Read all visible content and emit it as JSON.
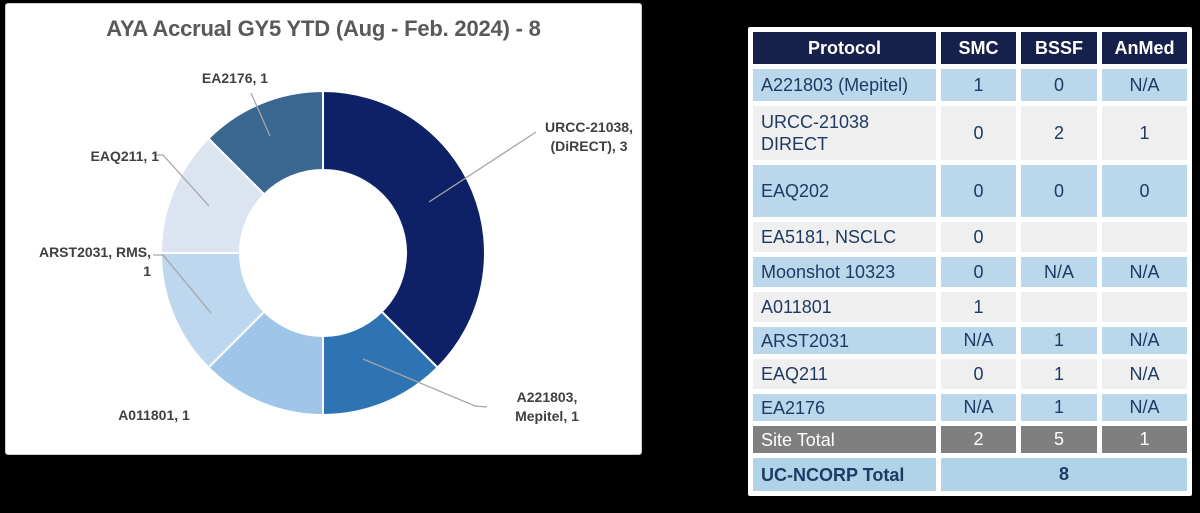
{
  "chart": {
    "title": "AYA Accrual GY5 YTD (Aug - Feb. 2024) - 8"
  },
  "chart_data": {
    "type": "pie",
    "subtype": "donut",
    "title": "AYA Accrual GY5 YTD (Aug - Feb. 2024) - 8",
    "total": 8,
    "start_angle_deg": 0,
    "direction": "clockwise",
    "legend_position": "none",
    "labels": "outside-with-leader-lines",
    "inner_radius_ratio": 0.51,
    "segments": [
      {
        "label": "URCC-21038, (DiRECT)",
        "value": 3,
        "color": "#0E2166",
        "data_label": "URCC-21038,\n(DiRECT), 3"
      },
      {
        "label": "A221803, Mepitel",
        "value": 1,
        "color": "#2E74B5",
        "data_label": "A221803,\nMepitel, 1"
      },
      {
        "label": "A011801",
        "value": 1,
        "color": "#9FC5E8",
        "data_label": "A011801, 1"
      },
      {
        "label": "ARST2031, RMS",
        "value": 1,
        "color": "#BDD7EE",
        "data_label": "ARST2031, RMS, 1"
      },
      {
        "label": "EAQ211",
        "value": 1,
        "color": "#DCE4F1",
        "data_label": "EAQ211, 1"
      },
      {
        "label": "EA2176",
        "value": 1,
        "color": "#3A6792",
        "data_label": "EA2176, 1"
      }
    ]
  },
  "table": {
    "headers": [
      "Protocol",
      "SMC",
      "BSSF",
      "AnMed"
    ],
    "rows": [
      {
        "protocol": "A221803 (Mepitel)",
        "smc": "1",
        "bssf": "0",
        "anmed": "N/A"
      },
      {
        "protocol": "URCC-21038\nDIRECT",
        "smc": "0",
        "bssf": "2",
        "anmed": "1"
      },
      {
        "protocol": "EAQ202",
        "smc": "0",
        "bssf": "0",
        "anmed": "0"
      },
      {
        "protocol": "EA5181, NSCLC",
        "smc": "0",
        "bssf": "",
        "anmed": ""
      },
      {
        "protocol": "Moonshot 10323",
        "smc": "0",
        "bssf": "N/A",
        "anmed": "N/A"
      },
      {
        "protocol": "A011801",
        "smc": "1",
        "bssf": "",
        "anmed": ""
      },
      {
        "protocol": "ARST2031",
        "smc": "N/A",
        "bssf": "1",
        "anmed": "N/A"
      },
      {
        "protocol": "EAQ211",
        "smc": "0",
        "bssf": "1",
        "anmed": "N/A"
      },
      {
        "protocol": "EA2176",
        "smc": "N/A",
        "bssf": "1",
        "anmed": "N/A"
      }
    ],
    "site_total": {
      "label": "Site Total",
      "smc": "2",
      "bssf": "5",
      "anmed": "1"
    },
    "uc_total": {
      "label": "UC-NCORP Total",
      "value": "8"
    }
  },
  "colors": {
    "header-bg": "#16214B",
    "row-blue": "#BAD7EB",
    "row-gray": "#F0EFEF",
    "total-gray": "#7F7F7F",
    "footer-blue": "#B0D3E8",
    "text-navy": "#1F3A63",
    "title-gray": "#595959",
    "label-gray": "#404040",
    "leader-gray": "#A6A6A6"
  }
}
